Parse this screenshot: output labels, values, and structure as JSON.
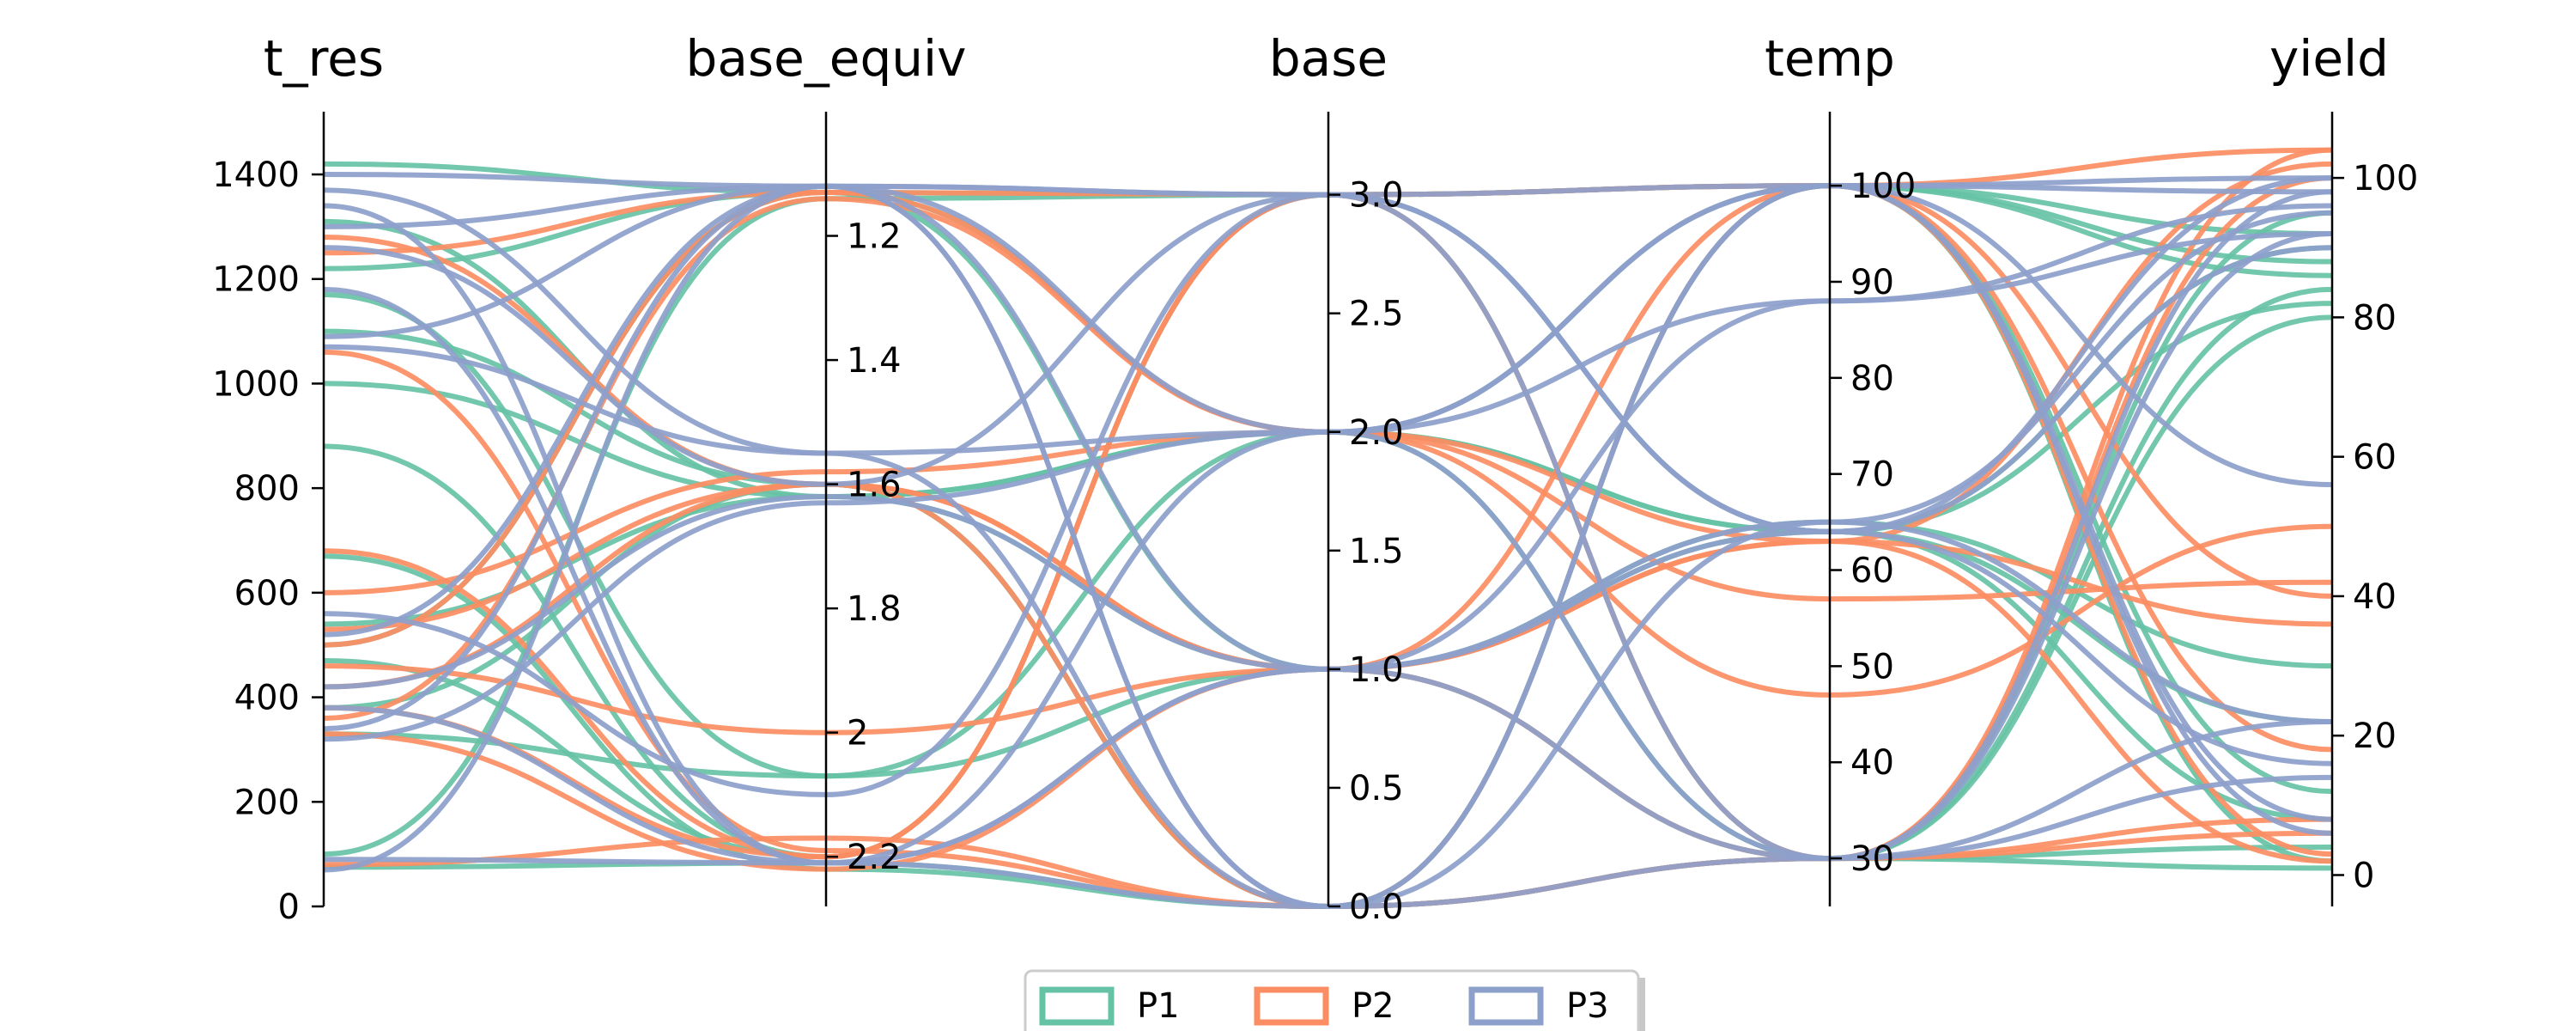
{
  "chart_data": {
    "type": "parallel-coordinates",
    "axes": [
      {
        "name": "t_res",
        "ticks": [
          0,
          200,
          400,
          600,
          800,
          1000,
          1200,
          1400
        ],
        "range": [
          0,
          1520
        ],
        "inverted": false
      },
      {
        "name": "base_equiv",
        "ticks": [
          1.2,
          1.4,
          1.6,
          1.8,
          2.0,
          2.2
        ],
        "range": [
          1.0,
          2.28
        ],
        "inverted": true
      },
      {
        "name": "base",
        "ticks": [
          0.0,
          0.5,
          1.0,
          1.5,
          2.0,
          2.5,
          3.0
        ],
        "tick_labels": [
          "0.0",
          "0.5",
          "1.0",
          "1.5",
          "2.0",
          "2.5",
          "3.0"
        ],
        "range": [
          0,
          3.35
        ],
        "inverted": false
      },
      {
        "name": "temp",
        "ticks": [
          30,
          40,
          50,
          60,
          70,
          80,
          90,
          100
        ],
        "range": [
          25,
          107.7
        ],
        "inverted": false
      },
      {
        "name": "yield",
        "ticks": [
          0,
          20,
          40,
          60,
          80,
          100
        ],
        "range": [
          -4.5,
          109.5
        ],
        "inverted": false
      }
    ],
    "legend": {
      "placement": "bottom-center",
      "entries": [
        {
          "name": "P1",
          "color": "#66c2a5"
        },
        {
          "name": "P2",
          "color": "#fc8d62"
        },
        {
          "name": "P3",
          "color": "#8da0cb"
        }
      ]
    },
    "series": [
      {
        "name": "P1",
        "color": "#66c2a5",
        "lines": [
          [
            1420,
            1.13,
            3.0,
            100,
            92
          ],
          [
            1310,
            1.62,
            2.0,
            64,
            22
          ],
          [
            1220,
            1.13,
            1.0,
            30,
            84
          ],
          [
            1170,
            2.07,
            1.0,
            65,
            30
          ],
          [
            1100,
            1.6,
            0.0,
            100,
            88
          ],
          [
            1000,
            1.62,
            2.0,
            64,
            82
          ],
          [
            880,
            2.2,
            3.0,
            30,
            4
          ],
          [
            670,
            2.22,
            0.0,
            100,
            2
          ],
          [
            540,
            1.62,
            1.0,
            64,
            90
          ],
          [
            500,
            1.13,
            2.0,
            30,
            95
          ],
          [
            470,
            2.2,
            3.0,
            100,
            12
          ],
          [
            380,
            1.6,
            0.0,
            30,
            80
          ],
          [
            330,
            2.07,
            2.0,
            100,
            86
          ],
          [
            100,
            1.14,
            3.0,
            64,
            8
          ],
          [
            75,
            2.21,
            0.0,
            30,
            1
          ]
        ]
      },
      {
        "name": "P2",
        "color": "#fc8d62",
        "lines": [
          [
            1250,
            1.13,
            3.0,
            100,
            104
          ],
          [
            1280,
            1.6,
            1.0,
            63,
            102
          ],
          [
            1060,
            2.19,
            0.0,
            30,
            100
          ],
          [
            680,
            2.2,
            3.0,
            100,
            3
          ],
          [
            600,
            1.58,
            2.0,
            57,
            42
          ],
          [
            530,
            1.6,
            1.0,
            63,
            36
          ],
          [
            500,
            1.13,
            2.0,
            47,
            50
          ],
          [
            460,
            2.0,
            1.0,
            30,
            8
          ],
          [
            420,
            1.6,
            0.0,
            100,
            40
          ],
          [
            380,
            2.2,
            3.0,
            30,
            104
          ],
          [
            360,
            1.14,
            2.0,
            63,
            2
          ],
          [
            330,
            2.22,
            1.0,
            100,
            18
          ],
          [
            80,
            2.17,
            0.0,
            30,
            6
          ]
        ]
      },
      {
        "name": "P3",
        "color": "#8da0cb",
        "lines": [
          [
            1400,
            1.12,
            3.0,
            100,
            100
          ],
          [
            1370,
            1.55,
            2.0,
            88,
            96
          ],
          [
            1340,
            2.21,
            1.0,
            65,
            22
          ],
          [
            1300,
            1.12,
            0.0,
            30,
            92
          ],
          [
            1260,
            1.6,
            3.0,
            64,
            16
          ],
          [
            1180,
            2.21,
            2.0,
            100,
            56
          ],
          [
            1090,
            1.12,
            1.0,
            30,
            98
          ],
          [
            1070,
            1.55,
            0.0,
            65,
            95
          ],
          [
            560,
            2.1,
            3.0,
            30,
            22
          ],
          [
            520,
            1.12,
            2.0,
            100,
            6
          ],
          [
            420,
            1.62,
            1.0,
            64,
            90
          ],
          [
            380,
            2.21,
            0.0,
            100,
            98
          ],
          [
            340,
            1.12,
            3.0,
            64,
            100
          ],
          [
            320,
            1.63,
            2.0,
            30,
            14
          ],
          [
            90,
            2.21,
            1.0,
            88,
            92
          ],
          [
            70,
            1.12,
            0.0,
            100,
            8
          ]
        ]
      }
    ]
  }
}
